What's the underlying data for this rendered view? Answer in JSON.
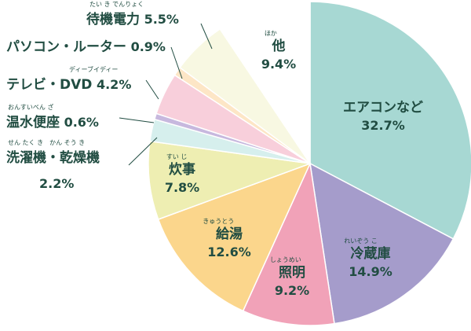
{
  "chart_data": {
    "type": "pie",
    "title": "",
    "start": "top, clockwise",
    "slices": [
      {
        "name": "エアコンなど",
        "value": 32.7,
        "color": "#a7d8d3",
        "label": "32.7%"
      },
      {
        "name": "冷蔵庫",
        "ruby": "れいぞう こ",
        "value": 14.9,
        "color": "#a59ccb",
        "label": "14.9%"
      },
      {
        "name": "照明",
        "ruby": "しょうめい",
        "value": 9.2,
        "color": "#f1a2b8",
        "label": "9.2%"
      },
      {
        "name": "給湯",
        "ruby": "きゅうとう",
        "value": 12.6,
        "color": "#fbd68c",
        "label": "12.6%"
      },
      {
        "name": "炊事",
        "ruby": "すい じ",
        "value": 7.8,
        "color": "#eeeeb2",
        "label": "7.8%"
      },
      {
        "name": "洗濯機・乾燥機",
        "ruby": "せん たく き　かん そう き",
        "value": 2.2,
        "color": "#d6efed",
        "label": "2.2%"
      },
      {
        "name": "温水便座",
        "ruby": "おんすいべん ざ",
        "value": 0.6,
        "color": "#c7b8de",
        "label": "0.6%"
      },
      {
        "name": "テレビ・DVD",
        "ruby": "ディーブイディー",
        "value": 4.2,
        "color": "#f8cfdb",
        "label": "4.2%"
      },
      {
        "name": "パソコン・ルーター",
        "value": 0.9,
        "color": "#fde6c6",
        "label": "0.9%"
      },
      {
        "name": "待機電力",
        "ruby": "たい き でんりょく",
        "value": 5.5,
        "color": "#f8f8e2",
        "label": "5.5%"
      },
      {
        "name": "他",
        "ruby": "ほか",
        "value": 9.4,
        "color": "#ffffff",
        "label": "9.4%"
      }
    ]
  }
}
